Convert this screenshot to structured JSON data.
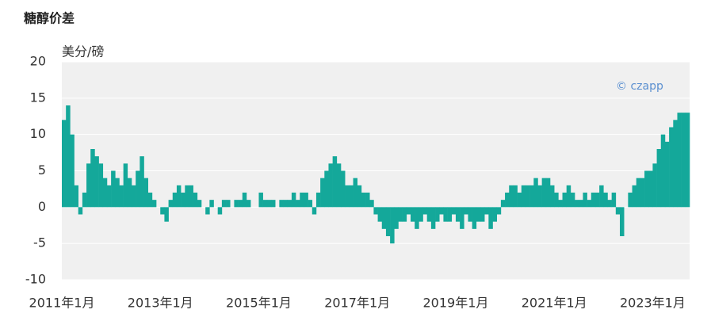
{
  "chart_data": {
    "type": "bar",
    "title": "糖醇价差",
    "y_label": "美分/磅",
    "watermark": "© czapp",
    "color": "#14a89a",
    "background": "#f0f0f0",
    "grid": true,
    "ylim": [
      -10,
      20
    ],
    "yticks": [
      -10,
      -5,
      0,
      5,
      10,
      15,
      20
    ],
    "categories": [
      "2011年1月",
      null,
      null,
      null,
      null,
      null,
      null,
      null,
      null,
      null,
      null,
      null,
      null,
      null,
      null,
      null,
      null,
      null,
      null,
      null,
      null,
      null,
      null,
      null,
      "2013年1月",
      null,
      null,
      null,
      null,
      null,
      null,
      null,
      null,
      null,
      null,
      null,
      null,
      null,
      null,
      null,
      null,
      null,
      null,
      null,
      null,
      null,
      null,
      null,
      "2015年1月",
      null,
      null,
      null,
      null,
      null,
      null,
      null,
      null,
      null,
      null,
      null,
      null,
      null,
      null,
      null,
      null,
      null,
      null,
      null,
      null,
      null,
      null,
      null,
      "2017年1月",
      null,
      null,
      null,
      null,
      null,
      null,
      null,
      null,
      null,
      null,
      null,
      null,
      null,
      null,
      null,
      null,
      null,
      null,
      null,
      null,
      null,
      null,
      null,
      "2019年1月",
      null,
      null,
      null,
      null,
      null,
      null,
      null,
      null,
      null,
      null,
      null,
      null,
      null,
      null,
      null,
      null,
      null,
      null,
      null,
      null,
      null,
      null,
      null,
      "2021年1月",
      null,
      null,
      null,
      null,
      null,
      null,
      null,
      null,
      null,
      null,
      null,
      null,
      null,
      null,
      null,
      null,
      null,
      null,
      null,
      null,
      null,
      null,
      null,
      "2023年1月",
      null,
      null,
      null,
      null,
      null,
      null,
      null,
      null
    ],
    "values": [
      12,
      14,
      10,
      3,
      -1,
      2,
      6,
      8,
      7,
      6,
      4,
      3,
      5,
      4,
      3,
      6,
      4,
      3,
      5,
      7,
      4,
      2,
      1,
      0,
      -1,
      -2,
      1,
      2,
      3,
      2,
      3,
      3,
      2,
      1,
      0,
      -1,
      1,
      0,
      -1,
      1,
      1,
      0,
      1,
      1,
      2,
      1,
      0,
      0,
      2,
      1,
      1,
      1,
      0,
      1,
      1,
      1,
      2,
      1,
      2,
      2,
      1,
      -1,
      2,
      4,
      5,
      6,
      7,
      6,
      5,
      3,
      3,
      4,
      3,
      2,
      2,
      1,
      -1,
      -2,
      -3,
      -4,
      -5,
      -3,
      -2,
      -2,
      -1,
      -2,
      -3,
      -2,
      -1,
      -2,
      -3,
      -2,
      -1,
      -2,
      -2,
      -1,
      -2,
      -3,
      -1,
      -2,
      -3,
      -2,
      -2,
      -1,
      -3,
      -2,
      -1,
      1,
      2,
      3,
      3,
      2,
      3,
      3,
      3,
      4,
      3,
      4,
      4,
      3,
      2,
      1,
      2,
      3,
      2,
      1,
      1,
      2,
      1,
      2,
      2,
      3,
      2,
      1,
      2,
      -1,
      -4,
      0,
      2,
      3,
      4,
      4,
      5,
      5,
      6,
      8,
      10,
      9,
      11,
      12,
      13,
      13,
      13
    ]
  }
}
